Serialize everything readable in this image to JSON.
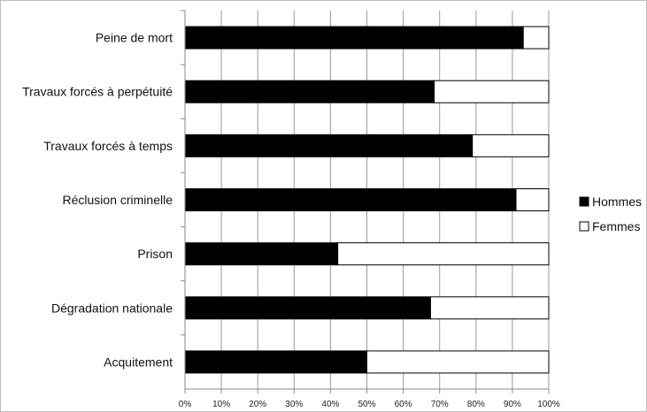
{
  "chart_data": {
    "type": "bar",
    "orientation": "horizontal",
    "stacked": true,
    "normalized_percent": true,
    "title": "",
    "xlabel": "",
    "ylabel": "",
    "categories": [
      "Peine de mort",
      "Travaux forcés à perpétuité",
      "Travaux forcés à temps",
      "Réclusion criminelle",
      "Prison",
      "Dégradation nationale",
      "Acquitement"
    ],
    "series": [
      {
        "name": "Hommes",
        "color": "#000000",
        "values": [
          93,
          68.5,
          79,
          91,
          42,
          67.5,
          50
        ]
      },
      {
        "name": "Femmes",
        "color": "#ffffff",
        "values": [
          7,
          31.5,
          21,
          9,
          58,
          32.5,
          50
        ]
      }
    ],
    "xlim": [
      0,
      100
    ],
    "x_ticks": [
      0,
      10,
      20,
      30,
      40,
      50,
      60,
      70,
      80,
      90,
      100
    ],
    "x_tick_labels": [
      "0%",
      "10%",
      "20%",
      "30%",
      "40%",
      "50%",
      "60%",
      "70%",
      "80%",
      "90%",
      "100%"
    ],
    "grid": "vertical",
    "legend_position": "right"
  }
}
